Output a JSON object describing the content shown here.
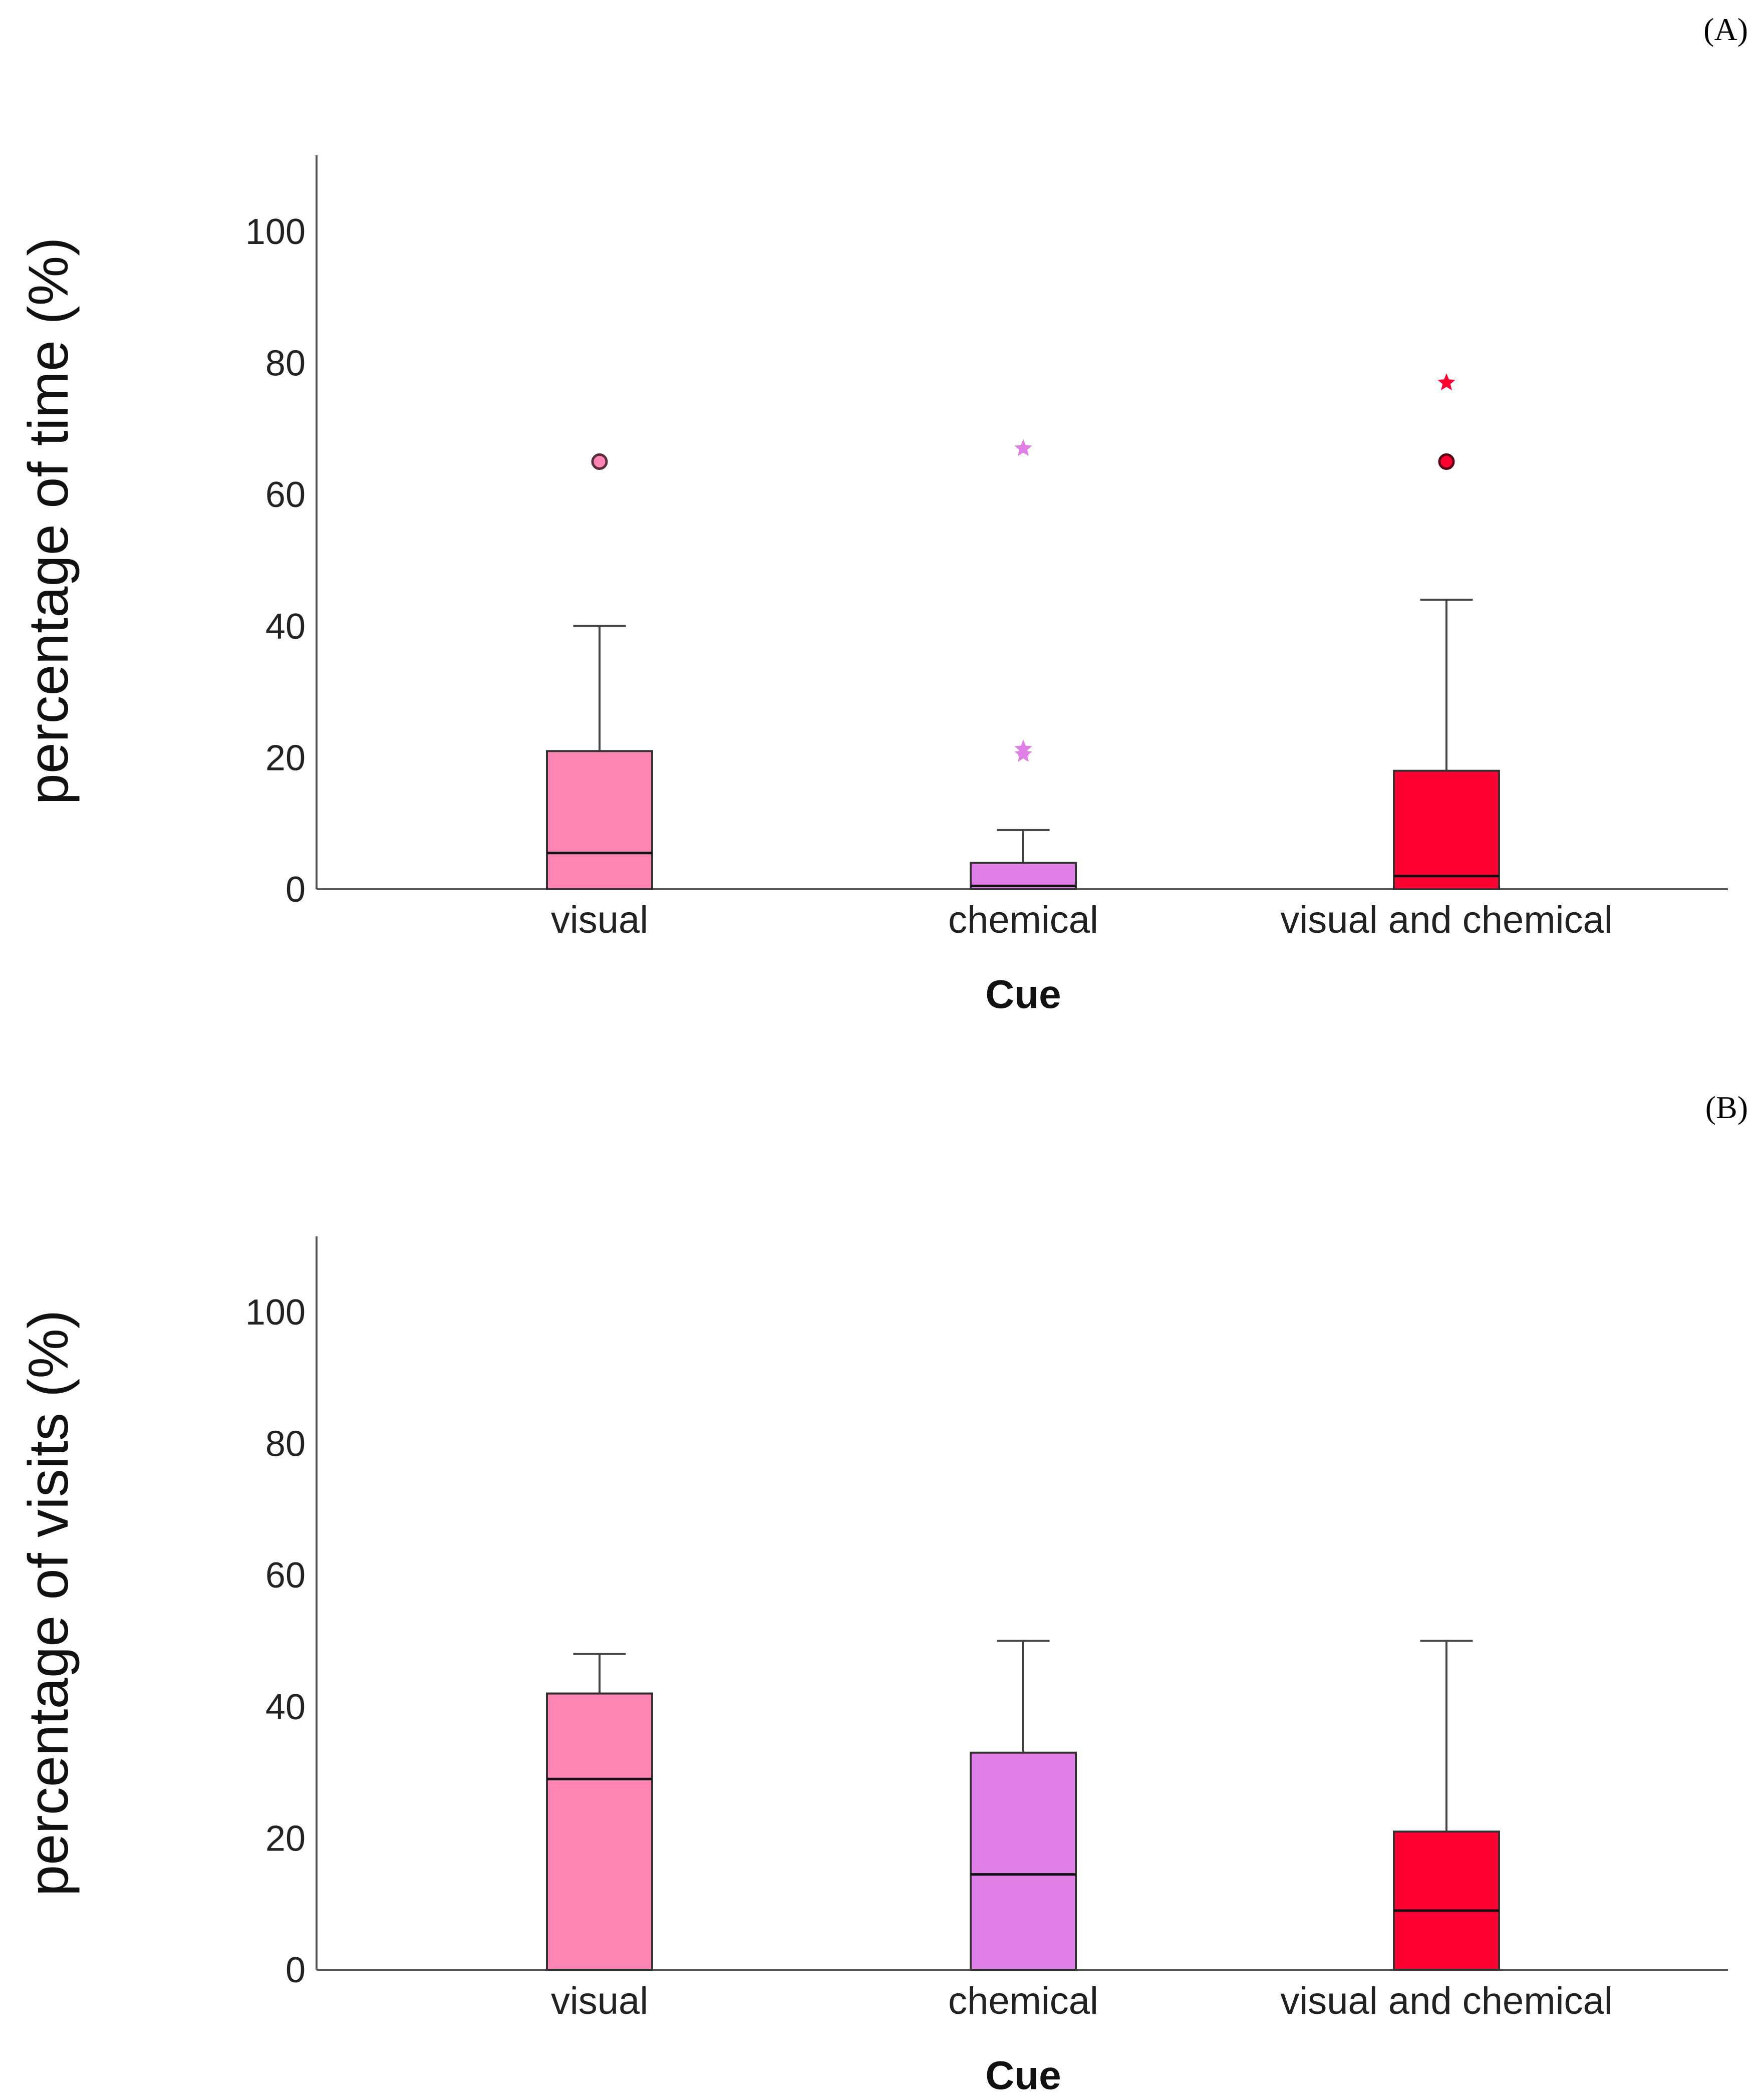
{
  "chart_data": [
    {
      "type": "box",
      "panel": "A",
      "panel_label": "(A)",
      "xlabel": "Cue",
      "ylabel": "percentage of time (%)",
      "ylim": [
        0,
        111
      ],
      "yticks": [
        0,
        20,
        40,
        60,
        80,
        100
      ],
      "grid": false,
      "categories": [
        "visual",
        "chemical",
        "visual and chemical"
      ],
      "series": [
        {
          "name": "visual",
          "color": "#ff85b4",
          "min": 0,
          "q1": 0,
          "median": 5.5,
          "q3": 21,
          "max": 40,
          "outliers": [
            {
              "value": 65,
              "marker": "circle"
            }
          ]
        },
        {
          "name": "chemical",
          "color": "#e07fe6",
          "min": 0,
          "q1": 0,
          "median": 0.5,
          "q3": 4,
          "max": 9,
          "outliers": [
            {
              "value": 20.5,
              "marker": "star"
            },
            {
              "value": 21.3,
              "marker": "star"
            },
            {
              "value": 67,
              "marker": "star"
            }
          ]
        },
        {
          "name": "visual and chemical",
          "color": "#ff0033",
          "min": 0,
          "q1": 0,
          "median": 2,
          "q3": 18,
          "max": 44,
          "outliers": [
            {
              "value": 65,
              "marker": "circle"
            },
            {
              "value": 77,
              "marker": "star"
            }
          ]
        }
      ]
    },
    {
      "type": "box",
      "panel": "B",
      "panel_label": "(B)",
      "xlabel": "Cue",
      "ylabel": "percentage of visits (%)",
      "ylim": [
        0,
        111
      ],
      "yticks": [
        0,
        20,
        40,
        60,
        80,
        100
      ],
      "grid": false,
      "categories": [
        "visual",
        "chemical",
        "visual and chemical"
      ],
      "series": [
        {
          "name": "visual",
          "color": "#ff85b4",
          "min": 0,
          "q1": 0,
          "median": 29,
          "q3": 42,
          "max": 48,
          "outliers": []
        },
        {
          "name": "chemical",
          "color": "#e07fe6",
          "min": 0,
          "q1": 0,
          "median": 14.5,
          "q3": 33,
          "max": 50,
          "outliers": []
        },
        {
          "name": "visual and chemical",
          "color": "#ff0033",
          "min": 0,
          "q1": 0,
          "median": 9,
          "q3": 21,
          "max": 50,
          "outliers": []
        }
      ]
    }
  ]
}
